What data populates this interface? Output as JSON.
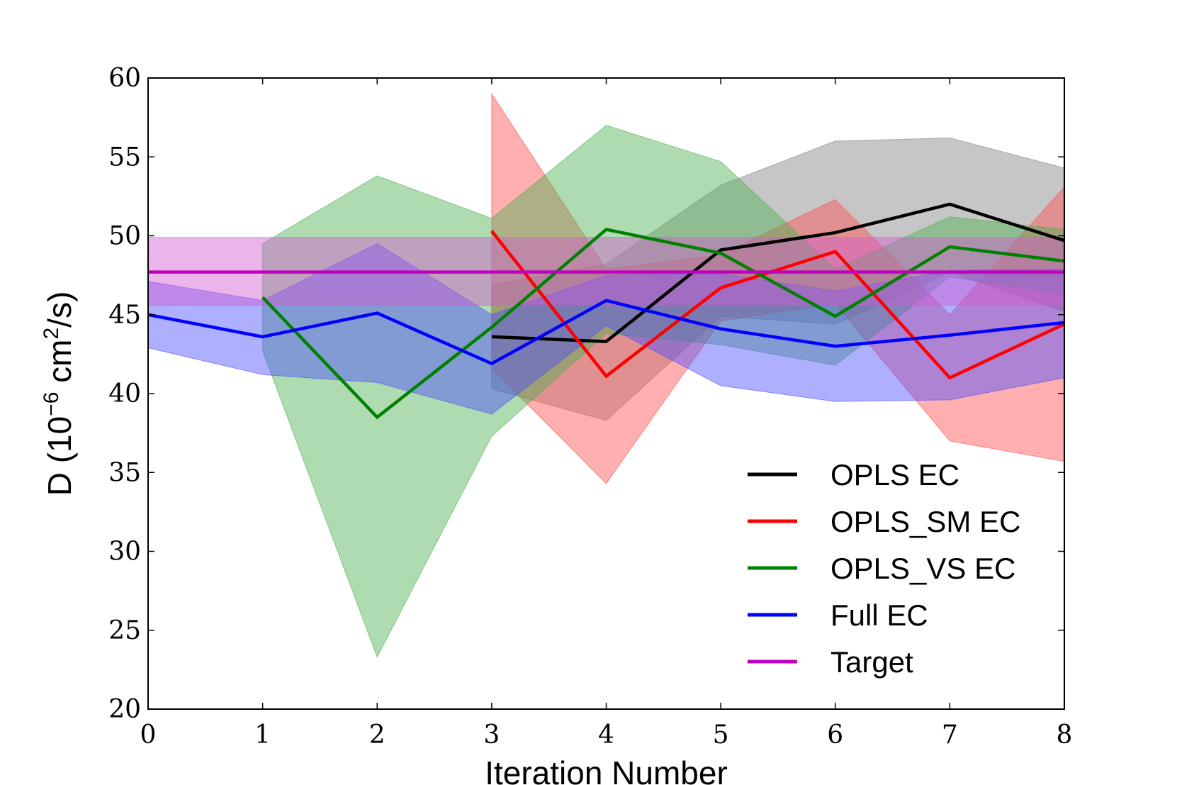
{
  "chart_data": {
    "type": "line",
    "title": "",
    "xlabel": "Iteration Number",
    "ylabel_parts": {
      "prefix": "D (10",
      "exp1": "−6",
      "mid": " cm",
      "exp2": "2",
      "suffix": "/s)"
    },
    "xlim": [
      0,
      8
    ],
    "ylim": [
      20,
      60
    ],
    "x_ticks": [
      0,
      1,
      2,
      3,
      4,
      5,
      6,
      7,
      8
    ],
    "y_ticks": [
      20,
      25,
      30,
      35,
      40,
      45,
      50,
      55,
      60
    ],
    "grid": false,
    "legend_position": "lower-right",
    "series": [
      {
        "name": "OPLS EC",
        "color": "#000000",
        "x": [
          3,
          4,
          5,
          6,
          7,
          8
        ],
        "y": [
          43.6,
          43.3,
          49.1,
          50.2,
          52.0,
          49.7
        ],
        "band_upper": [
          46.9,
          48.2,
          53.2,
          56.0,
          56.2,
          54.3
        ],
        "band_lower": [
          40.3,
          38.3,
          44.9,
          44.4,
          47.7,
          45.2
        ]
      },
      {
        "name": "OPLS_SM EC",
        "color": "#ff0000",
        "x": [
          3,
          4,
          5,
          6,
          7,
          8
        ],
        "y": [
          50.3,
          41.1,
          46.7,
          49.0,
          41.0,
          44.4
        ],
        "band_upper": [
          59.0,
          47.9,
          48.8,
          52.3,
          45.0,
          53.1
        ],
        "band_lower": [
          41.6,
          34.3,
          44.6,
          45.7,
          37.0,
          35.7
        ]
      },
      {
        "name": "OPLS_VS EC",
        "color": "#008000",
        "x": [
          1,
          2,
          3,
          4,
          5,
          6,
          7,
          8
        ],
        "y": [
          46.1,
          38.5,
          44.2,
          50.4,
          48.9,
          44.9,
          49.3,
          48.4
        ],
        "band_upper": [
          49.5,
          53.8,
          51.1,
          57.0,
          54.7,
          47.9,
          51.2,
          50.4
        ],
        "band_lower": [
          42.7,
          23.3,
          37.3,
          43.8,
          43.1,
          41.8,
          47.4,
          46.3
        ]
      },
      {
        "name": "Full EC",
        "color": "#0000ff",
        "x": [
          0,
          1,
          2,
          3,
          4,
          5,
          6,
          7,
          8
        ],
        "y": [
          45.0,
          43.6,
          45.1,
          41.9,
          45.9,
          44.1,
          43.0,
          43.7,
          44.5
        ],
        "band_upper": [
          47.1,
          45.9,
          49.5,
          45.0,
          47.5,
          47.6,
          46.5,
          47.8,
          47.9
        ],
        "band_lower": [
          42.9,
          41.2,
          40.7,
          38.7,
          44.3,
          40.5,
          39.5,
          39.6,
          41.0
        ]
      },
      {
        "name": "Target",
        "color": "#bf00bf",
        "x": [
          0,
          8
        ],
        "y": [
          47.7,
          47.7
        ],
        "band_upper": [
          49.9,
          49.9
        ],
        "band_lower": [
          45.6,
          45.6
        ]
      }
    ],
    "fill_colors": {
      "OPLS EC": "#808080",
      "OPLS_SM EC": "#ff4d4d",
      "OPLS_VS EC": "#4caf50",
      "Full EC": "#4d4dff",
      "Target": "#d25ad2"
    },
    "fill_opacity": 0.45
  }
}
